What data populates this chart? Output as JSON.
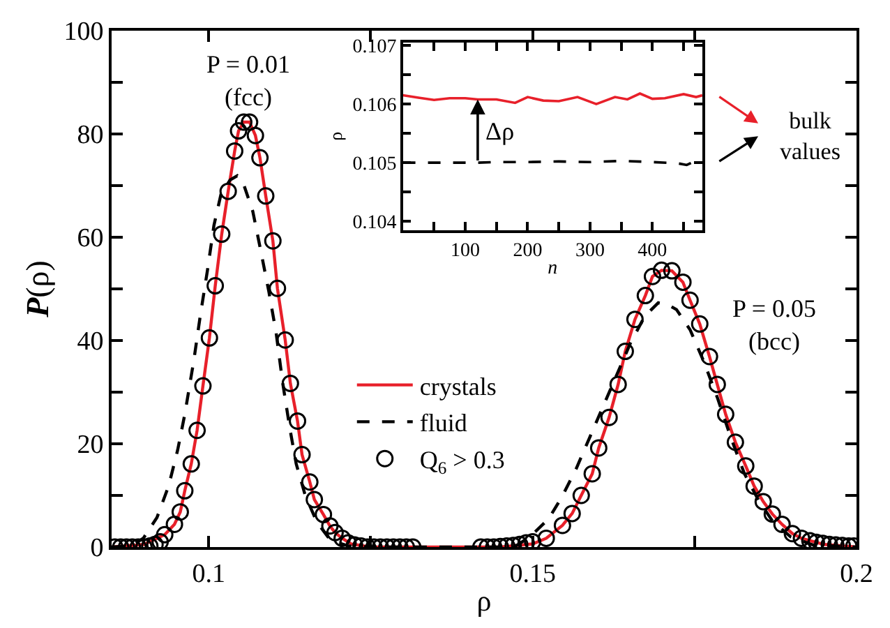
{
  "chart_data": [
    {
      "type": "line",
      "xlabel": "ρ",
      "ylabel": "P(ρ)",
      "xlim": [
        0.085,
        0.2
      ],
      "xticks": [
        0.1,
        {
          "value": 0.125,
          "label": null
        },
        0.15,
        {
          "value": 0.175,
          "label": null
        },
        0.2
      ],
      "ylim": [
        0,
        100
      ],
      "yticks": [
        0,
        {
          "value": 10,
          "label": null
        },
        20,
        {
          "value": 30,
          "label": null
        },
        40,
        {
          "value": 50,
          "label": null
        },
        60,
        {
          "value": 70,
          "label": null
        },
        80,
        {
          "value": 90,
          "label": null
        },
        100
      ],
      "legend": "bottom",
      "annotations": [
        "P = 0.01\n(fcc)",
        "P = 0.05\n(bcc)"
      ],
      "series": [
        {
          "name": "crystals",
          "type": "line",
          "color": "#e8202a",
          "line_style": "solid",
          "x": [
            0.085,
            0.09,
            0.0932,
            0.0947,
            0.0956,
            0.0963,
            0.0973,
            0.0982,
            0.0991,
            0.1001,
            0.101,
            0.102,
            0.103,
            0.104,
            0.1046,
            0.1054,
            0.1063,
            0.1072,
            0.1079,
            0.1088,
            0.1099,
            0.1106,
            0.1118,
            0.1126,
            0.1137,
            0.1144,
            0.1156,
            0.1163,
            0.1177,
            0.1187,
            0.1195,
            0.1206,
            0.122,
            0.125,
            0.145,
            0.15,
            0.1521,
            0.1546,
            0.1561,
            0.1575,
            0.1592,
            0.1602,
            0.1618,
            0.1632,
            0.1643,
            0.1658,
            0.1674,
            0.1685,
            0.1699,
            0.1715,
            0.1732,
            0.1743,
            0.1758,
            0.1773,
            0.1785,
            0.1798,
            0.1813,
            0.1829,
            0.1842,
            0.1856,
            0.187,
            0.1885,
            0.1901,
            0.1915,
            0.195,
            0.2
          ],
          "values": [
            0,
            0.5,
            2.4,
            4.4,
            6.8,
            10.9,
            16.1,
            22.6,
            31.2,
            40.5,
            50.6,
            60.6,
            68.9,
            76.7,
            80.6,
            82.3,
            82.3,
            79.7,
            75.4,
            68,
            59.3,
            50.1,
            40.1,
            31.7,
            24.4,
            17.9,
            12.6,
            9.2,
            6.3,
            4.1,
            2.8,
            1.7,
            0.6,
            0,
            0,
            0.6,
            1.7,
            4.2,
            6.5,
            10,
            14.2,
            19.2,
            25.1,
            31.5,
            37.9,
            44.1,
            48.7,
            52.4,
            53.6,
            53.5,
            51.3,
            47.8,
            43.2,
            36.9,
            31.5,
            25.7,
            20.3,
            15.7,
            11.8,
            8.8,
            6.4,
            4.4,
            2.6,
            1.7,
            0.5,
            0
          ]
        },
        {
          "name": "fluid",
          "type": "line",
          "color": "#000000",
          "line_style": "dashed",
          "x": [
            0.085,
            0.088,
            0.0899,
            0.092,
            0.0938,
            0.0952,
            0.0963,
            0.0977,
            0.0987,
            0.0998,
            0.1008,
            0.1019,
            0.1033,
            0.1044,
            0.1054,
            0.1068,
            0.1082,
            0.1093,
            0.1104,
            0.1114,
            0.1125,
            0.1135,
            0.1149,
            0.1167,
            0.1188,
            0.1216,
            0.125,
            0.145,
            0.1475,
            0.1496,
            0.1525,
            0.1546,
            0.1567,
            0.1588,
            0.1609,
            0.163,
            0.1651,
            0.1673,
            0.1694,
            0.1708,
            0.1722,
            0.1743,
            0.1764,
            0.1785,
            0.1806,
            0.1827,
            0.1849,
            0.187,
            0.1898,
            0.1933,
            0.2
          ],
          "values": [
            0,
            0.2,
            1.7,
            5.7,
            11.8,
            18.8,
            25.7,
            36.2,
            44.9,
            53.6,
            62.3,
            68.4,
            71.1,
            71.9,
            70.2,
            65,
            56.3,
            49.3,
            41.5,
            31.9,
            23.1,
            16.1,
            10,
            4.8,
            1.3,
            0.2,
            0,
            0,
            0.3,
            2,
            5.5,
            9.9,
            15.1,
            21.2,
            27.3,
            33.4,
            39.5,
            44.7,
            47.3,
            47,
            46,
            42.1,
            36,
            29,
            21.2,
            14.2,
            9,
            5.1,
            2,
            0.4,
            0
          ]
        },
        {
          "name": "Q$_{6}$ > 0.3",
          "type": "scatter",
          "color": "#000000",
          "marker": "circle",
          "x": [
            0.0855,
            0.0864,
            0.0873,
            0.0882,
            0.0891,
            0.09,
            0.0909,
            0.0917,
            0.0925,
            0.0932,
            0.0947,
            0.0956,
            0.0963,
            0.0973,
            0.0982,
            0.0991,
            0.1001,
            0.101,
            0.102,
            0.103,
            0.104,
            0.1046,
            0.1054,
            0.1063,
            0.1072,
            0.1079,
            0.1088,
            0.1099,
            0.1106,
            0.1118,
            0.1126,
            0.1137,
            0.1144,
            0.1156,
            0.1163,
            0.1177,
            0.1187,
            0.1195,
            0.1206,
            0.1215,
            0.1225,
            0.1235,
            0.1245,
            0.1255,
            0.1265,
            0.1275,
            0.1285,
            0.1295,
            0.1305,
            0.1315,
            0.142,
            0.143,
            0.144,
            0.145,
            0.146,
            0.147,
            0.148,
            0.149,
            0.15,
            0.1521,
            0.1546,
            0.1561,
            0.1575,
            0.1592,
            0.1602,
            0.1618,
            0.1632,
            0.1643,
            0.1658,
            0.1674,
            0.1685,
            0.1699,
            0.1715,
            0.1732,
            0.1743,
            0.1758,
            0.1773,
            0.1785,
            0.1798,
            0.1813,
            0.1829,
            0.1842,
            0.1856,
            0.187,
            0.1885,
            0.1901,
            0.1915,
            0.1928,
            0.1938,
            0.1948,
            0.1958,
            0.1968,
            0.1978,
            0.1988,
            0.1996
          ],
          "values": [
            0,
            0,
            0,
            0,
            0,
            0,
            0.2,
            0.5,
            1,
            2.4,
            4.4,
            6.8,
            10.9,
            16.1,
            22.6,
            31.2,
            40.5,
            50.6,
            60.6,
            68.9,
            76.7,
            80.6,
            82.3,
            82.3,
            79.7,
            75.4,
            68,
            59.3,
            50.1,
            40.1,
            31.7,
            24.4,
            17.9,
            12.6,
            9.2,
            6.3,
            4.1,
            2.8,
            1.7,
            0.8,
            0.4,
            0.2,
            0,
            0,
            0,
            0,
            0,
            0,
            0,
            0,
            0,
            0,
            0,
            0.1,
            0.2,
            0.3,
            0.5,
            0.8,
            1,
            1.7,
            4.2,
            6.5,
            10,
            14.2,
            19.2,
            25.1,
            31.5,
            37.9,
            44.1,
            48.7,
            52.4,
            53.6,
            53.5,
            51.3,
            47.8,
            43.2,
            36.9,
            31.5,
            25.7,
            20.3,
            15.7,
            11.8,
            8.8,
            6.4,
            4.4,
            2.6,
            1.7,
            1.2,
            0.9,
            0.7,
            0.5,
            0.4,
            0.3,
            0.2,
            0.2
          ]
        }
      ]
    },
    {
      "type": "line",
      "xlabel": "n",
      "ylabel": "ρ",
      "xlim": [
        0,
        480
      ],
      "xticks": [
        {
          "value": 50,
          "label": null
        },
        100,
        {
          "value": 150,
          "label": null
        },
        200,
        {
          "value": 250,
          "label": null
        },
        300,
        {
          "value": 350,
          "label": null
        },
        400,
        {
          "value": 450,
          "label": null
        }
      ],
      "ylim": [
        0.10385,
        0.10705
      ],
      "yticks": [
        0.104,
        {
          "value": 0.1045,
          "label": null
        },
        0.105,
        {
          "value": 0.1055,
          "label": null
        },
        0.106,
        {
          "value": 0.1065,
          "label": null
        },
        0.107
      ],
      "annotations": [
        "Δρ",
        "bulk\nvalues"
      ],
      "series": [
        {
          "type": "line",
          "color": "#e8202a",
          "line_style": "solid",
          "x": [
            0,
            25,
            50,
            75,
            100,
            120,
            150,
            180,
            200,
            225,
            250,
            280,
            310,
            340,
            360,
            380,
            400,
            420,
            450,
            470,
            480
          ],
          "values": [
            0.10615,
            0.10611,
            0.10607,
            0.1061,
            0.1061,
            0.10608,
            0.10608,
            0.10602,
            0.10612,
            0.10606,
            0.10605,
            0.10612,
            0.106,
            0.10612,
            0.10608,
            0.10618,
            0.10609,
            0.1061,
            0.10617,
            0.10612,
            0.10615
          ]
        },
        {
          "type": "line",
          "color": "#000000",
          "line_style": "dashed",
          "x": [
            0,
            50,
            100,
            120,
            150,
            200,
            250,
            300,
            350,
            400,
            440,
            455,
            465,
            480
          ],
          "values": [
            0.105,
            0.105,
            0.105,
            0.105,
            0.10501,
            0.10501,
            0.10502,
            0.10501,
            0.10503,
            0.10501,
            0.10499,
            0.10496,
            0.10501,
            0.105
          ]
        }
      ]
    }
  ]
}
